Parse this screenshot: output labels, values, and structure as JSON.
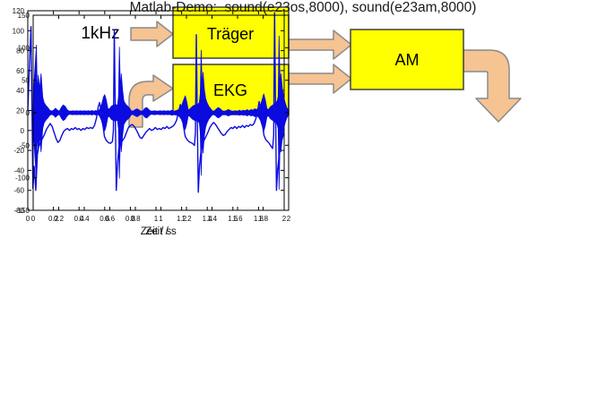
{
  "diagram": {
    "input_label": "1kHz",
    "blocks": [
      {
        "label": "Träger"
      },
      {
        "label": "EKG"
      },
      {
        "label": "AM"
      }
    ],
    "arrows": [
      "input-1khz-to-traeger",
      "traeger-to-am",
      "ekg-to-am",
      "curved-into-ekg",
      "am-output-down"
    ],
    "colors": {
      "block_fill": "#FFFF00",
      "block_border": "#404040",
      "arrow_fill": "#F6C392",
      "arrow_border": "#8A8A8A"
    }
  },
  "caption": "Matlab-Demo:  sound(e23os,8000), sound(e23am,8000)",
  "chart_data": [
    {
      "type": "line",
      "name": "ekg-signal",
      "xlabel": "Zeit / s",
      "ylabel": "",
      "xlim": [
        0,
        2
      ],
      "ylim": [
        -80,
        120
      ],
      "grid": false,
      "color": "#0B0BE0",
      "xticks": [
        {
          "v": 0,
          "l": "0"
        },
        {
          "v": 0.2,
          "l": "0.2"
        },
        {
          "v": 0.4,
          "l": "0.4"
        },
        {
          "v": 0.6,
          "l": "0.6"
        },
        {
          "v": 0.8,
          "l": "0.8"
        },
        {
          "v": 1,
          "l": "1"
        },
        {
          "v": 1.2,
          "l": "1.2"
        },
        {
          "v": 1.4,
          "l": "1.4"
        },
        {
          "v": 1.6,
          "l": "1.6"
        },
        {
          "v": 1.8,
          "l": "1.8"
        },
        {
          "v": 2,
          "l": "2"
        }
      ],
      "yticks": [
        {
          "v": -80,
          "l": "-80"
        },
        {
          "v": -60,
          "l": "-60"
        },
        {
          "v": -40,
          "l": "-40"
        },
        {
          "v": -20,
          "l": "-20"
        },
        {
          "v": 0,
          "l": "0"
        },
        {
          "v": 20,
          "l": "20"
        },
        {
          "v": 40,
          "l": "40"
        },
        {
          "v": 60,
          "l": "60"
        },
        {
          "v": 80,
          "l": "80"
        },
        {
          "v": 100,
          "l": "100"
        },
        {
          "v": 120,
          "l": "120"
        }
      ],
      "points": [
        [
          0,
          20
        ],
        [
          0.01,
          55
        ],
        [
          0.025,
          104
        ],
        [
          0.032,
          30
        ],
        [
          0.04,
          -58
        ],
        [
          0.05,
          -36
        ],
        [
          0.062,
          -60
        ],
        [
          0.075,
          -24
        ],
        [
          0.085,
          -16
        ],
        [
          0.1,
          -11
        ],
        [
          0.115,
          -8
        ],
        [
          0.13,
          -4
        ],
        [
          0.145,
          1
        ],
        [
          0.16,
          4
        ],
        [
          0.175,
          7
        ],
        [
          0.19,
          4
        ],
        [
          0.205,
          -2
        ],
        [
          0.22,
          -8
        ],
        [
          0.235,
          -12
        ],
        [
          0.25,
          -10
        ],
        [
          0.265,
          -5
        ],
        [
          0.28,
          -1
        ],
        [
          0.295,
          1
        ],
        [
          0.31,
          2
        ],
        [
          0.325,
          0
        ],
        [
          0.34,
          2
        ],
        [
          0.355,
          1
        ],
        [
          0.37,
          3
        ],
        [
          0.385,
          1
        ],
        [
          0.4,
          2
        ],
        [
          0.415,
          0
        ],
        [
          0.43,
          2
        ],
        [
          0.445,
          1
        ],
        [
          0.46,
          3
        ],
        [
          0.475,
          2
        ],
        [
          0.49,
          3
        ],
        [
          0.505,
          2
        ],
        [
          0.52,
          5
        ],
        [
          0.535,
          12
        ],
        [
          0.55,
          24
        ],
        [
          0.56,
          28
        ],
        [
          0.572,
          20
        ],
        [
          0.585,
          6
        ],
        [
          0.598,
          -6
        ],
        [
          0.612,
          -10
        ],
        [
          0.628,
          -12
        ],
        [
          0.645,
          -13
        ],
        [
          0.66,
          -11
        ],
        [
          0.668,
          0
        ],
        [
          0.675,
          101
        ],
        [
          0.683,
          10
        ],
        [
          0.69,
          -60
        ],
        [
          0.7,
          -34
        ],
        [
          0.71,
          -18
        ],
        [
          0.725,
          -13
        ],
        [
          0.74,
          -10
        ],
        [
          0.755,
          -7
        ],
        [
          0.77,
          -2
        ],
        [
          0.785,
          3
        ],
        [
          0.8,
          5
        ],
        [
          0.815,
          6
        ],
        [
          0.83,
          4
        ],
        [
          0.845,
          1
        ],
        [
          0.86,
          -3
        ],
        [
          0.875,
          -7
        ],
        [
          0.89,
          -8
        ],
        [
          0.905,
          -5
        ],
        [
          0.92,
          -2
        ],
        [
          0.935,
          0
        ],
        [
          0.95,
          2
        ],
        [
          0.965,
          0
        ],
        [
          0.98,
          1
        ],
        [
          0.995,
          3
        ],
        [
          1.01,
          1
        ],
        [
          1.025,
          2
        ],
        [
          1.04,
          1
        ],
        [
          1.055,
          3
        ],
        [
          1.07,
          2
        ],
        [
          1.085,
          4
        ],
        [
          1.1,
          2
        ],
        [
          1.115,
          3
        ],
        [
          1.13,
          4
        ],
        [
          1.145,
          6
        ],
        [
          1.16,
          10
        ],
        [
          1.175,
          18
        ],
        [
          1.19,
          26
        ],
        [
          1.202,
          17
        ],
        [
          1.215,
          4
        ],
        [
          1.228,
          -6
        ],
        [
          1.242,
          -9
        ],
        [
          1.256,
          -11
        ],
        [
          1.27,
          -12
        ],
        [
          1.285,
          -13
        ],
        [
          1.3,
          -15
        ],
        [
          1.308,
          -2
        ],
        [
          1.315,
          96
        ],
        [
          1.323,
          5
        ],
        [
          1.33,
          -62
        ],
        [
          1.34,
          -35
        ],
        [
          1.35,
          -22
        ],
        [
          1.362,
          -15
        ],
        [
          1.375,
          -10
        ],
        [
          1.39,
          -6
        ],
        [
          1.405,
          -2
        ],
        [
          1.42,
          3
        ],
        [
          1.435,
          6
        ],
        [
          1.45,
          8
        ],
        [
          1.465,
          6
        ],
        [
          1.48,
          3
        ],
        [
          1.495,
          0
        ],
        [
          1.51,
          -3
        ],
        [
          1.525,
          -5
        ],
        [
          1.54,
          -4
        ],
        [
          1.555,
          -1
        ],
        [
          1.57,
          1
        ],
        [
          1.585,
          3
        ],
        [
          1.6,
          2
        ],
        [
          1.615,
          4
        ],
        [
          1.63,
          2
        ],
        [
          1.645,
          4
        ],
        [
          1.66,
          3
        ],
        [
          1.675,
          5
        ],
        [
          1.69,
          3
        ],
        [
          1.705,
          5
        ],
        [
          1.72,
          4
        ],
        [
          1.735,
          6
        ],
        [
          1.75,
          5
        ],
        [
          1.765,
          7
        ],
        [
          1.78,
          12
        ],
        [
          1.795,
          22
        ],
        [
          1.805,
          29
        ],
        [
          1.817,
          20
        ],
        [
          1.83,
          6
        ],
        [
          1.843,
          -5
        ],
        [
          1.856,
          -9
        ],
        [
          1.87,
          -11
        ],
        [
          1.884,
          -13
        ],
        [
          1.898,
          -16
        ],
        [
          1.91,
          -18
        ],
        [
          1.918,
          -5
        ],
        [
          1.925,
          118
        ],
        [
          1.933,
          20
        ],
        [
          1.94,
          -60
        ],
        [
          1.95,
          -38
        ],
        [
          1.96,
          -26
        ],
        [
          1.972,
          -16
        ],
        [
          1.985,
          -8
        ],
        [
          2,
          -2
        ]
      ]
    },
    {
      "type": "area",
      "name": "am-modulated-signal",
      "xlabel": "Zeit / s",
      "ylabel": "",
      "xlim": [
        0,
        2
      ],
      "ylim": [
        -150,
        150
      ],
      "grid": false,
      "color": "#0B0BE0",
      "xticks": [
        {
          "v": 0,
          "l": "0"
        },
        {
          "v": 0.2,
          "l": "0.2"
        },
        {
          "v": 0.4,
          "l": "0.4"
        },
        {
          "v": 0.6,
          "l": "0.6"
        },
        {
          "v": 0.8,
          "l": "0.8"
        },
        {
          "v": 1,
          "l": "1"
        },
        {
          "v": 1.2,
          "l": "1.2"
        },
        {
          "v": 1.4,
          "l": "1.4"
        },
        {
          "v": 1.6,
          "l": "1.6"
        },
        {
          "v": 1.8,
          "l": "1.8"
        },
        {
          "v": 2,
          "l": "2"
        }
      ],
      "yticks": [
        {
          "v": -150,
          "l": "-150"
        },
        {
          "v": -100,
          "l": "-100"
        },
        {
          "v": -50,
          "l": "-50"
        },
        {
          "v": 0,
          "l": "0"
        },
        {
          "v": 50,
          "l": "50"
        },
        {
          "v": 100,
          "l": "100"
        },
        {
          "v": 150,
          "l": "150"
        }
      ],
      "envelope": [
        [
          0,
          20
        ],
        [
          0.01,
          55
        ],
        [
          0.025,
          104
        ],
        [
          0.032,
          30
        ],
        [
          0.04,
          58
        ],
        [
          0.05,
          36
        ],
        [
          0.062,
          60
        ],
        [
          0.075,
          24
        ],
        [
          0.085,
          16
        ],
        [
          0.1,
          11
        ],
        [
          0.115,
          8
        ],
        [
          0.13,
          4
        ],
        [
          0.145,
          2.5
        ],
        [
          0.16,
          4
        ],
        [
          0.175,
          7
        ],
        [
          0.19,
          4
        ],
        [
          0.205,
          2.5
        ],
        [
          0.22,
          8
        ],
        [
          0.235,
          12
        ],
        [
          0.25,
          10
        ],
        [
          0.265,
          5
        ],
        [
          0.28,
          2.5
        ],
        [
          0.295,
          2.5
        ],
        [
          0.31,
          3
        ],
        [
          0.325,
          2.5
        ],
        [
          0.34,
          3
        ],
        [
          0.355,
          2.5
        ],
        [
          0.37,
          3
        ],
        [
          0.385,
          2.5
        ],
        [
          0.4,
          3
        ],
        [
          0.415,
          2.5
        ],
        [
          0.43,
          3
        ],
        [
          0.445,
          2.5
        ],
        [
          0.46,
          3.5
        ],
        [
          0.475,
          2.5
        ],
        [
          0.49,
          3.5
        ],
        [
          0.505,
          2.5
        ],
        [
          0.52,
          5
        ],
        [
          0.535,
          12
        ],
        [
          0.55,
          24
        ],
        [
          0.56,
          28
        ],
        [
          0.572,
          20
        ],
        [
          0.585,
          6
        ],
        [
          0.598,
          6
        ],
        [
          0.612,
          10
        ],
        [
          0.628,
          12
        ],
        [
          0.645,
          13
        ],
        [
          0.66,
          11
        ],
        [
          0.668,
          25
        ],
        [
          0.675,
          101
        ],
        [
          0.683,
          35
        ],
        [
          0.69,
          60
        ],
        [
          0.7,
          34
        ],
        [
          0.71,
          18
        ],
        [
          0.725,
          13
        ],
        [
          0.74,
          10
        ],
        [
          0.755,
          7
        ],
        [
          0.77,
          2.5
        ],
        [
          0.785,
          3
        ],
        [
          0.8,
          5
        ],
        [
          0.815,
          6
        ],
        [
          0.83,
          4
        ],
        [
          0.845,
          2.5
        ],
        [
          0.86,
          3
        ],
        [
          0.875,
          7
        ],
        [
          0.89,
          8
        ],
        [
          0.905,
          5
        ],
        [
          0.92,
          2.5
        ],
        [
          0.935,
          2.5
        ],
        [
          0.95,
          3
        ],
        [
          0.965,
          2.5
        ],
        [
          0.98,
          2.5
        ],
        [
          0.995,
          3
        ],
        [
          1.01,
          2.5
        ],
        [
          1.025,
          3
        ],
        [
          1.04,
          2.5
        ],
        [
          1.055,
          3
        ],
        [
          1.07,
          2.5
        ],
        [
          1.085,
          4
        ],
        [
          1.1,
          2.5
        ],
        [
          1.115,
          3
        ],
        [
          1.13,
          4
        ],
        [
          1.145,
          6
        ],
        [
          1.16,
          10
        ],
        [
          1.175,
          18
        ],
        [
          1.19,
          26
        ],
        [
          1.202,
          17
        ],
        [
          1.215,
          4
        ],
        [
          1.228,
          6
        ],
        [
          1.242,
          9
        ],
        [
          1.256,
          11
        ],
        [
          1.27,
          12
        ],
        [
          1.285,
          13
        ],
        [
          1.3,
          15
        ],
        [
          1.308,
          30
        ],
        [
          1.315,
          96
        ],
        [
          1.323,
          40
        ],
        [
          1.33,
          62
        ],
        [
          1.34,
          35
        ],
        [
          1.35,
          22
        ],
        [
          1.362,
          15
        ],
        [
          1.375,
          10
        ],
        [
          1.39,
          6
        ],
        [
          1.405,
          2.5
        ],
        [
          1.42,
          3
        ],
        [
          1.435,
          6
        ],
        [
          1.45,
          8
        ],
        [
          1.465,
          6
        ],
        [
          1.48,
          3
        ],
        [
          1.495,
          2.5
        ],
        [
          1.51,
          3
        ],
        [
          1.525,
          5
        ],
        [
          1.54,
          4
        ],
        [
          1.555,
          2.5
        ],
        [
          1.57,
          2.5
        ],
        [
          1.585,
          3
        ],
        [
          1.6,
          2.5
        ],
        [
          1.615,
          4
        ],
        [
          1.63,
          2.5
        ],
        [
          1.645,
          4
        ],
        [
          1.66,
          3
        ],
        [
          1.675,
          5
        ],
        [
          1.69,
          3
        ],
        [
          1.705,
          5
        ],
        [
          1.72,
          4
        ],
        [
          1.735,
          6
        ],
        [
          1.75,
          5
        ],
        [
          1.765,
          7
        ],
        [
          1.78,
          12
        ],
        [
          1.795,
          22
        ],
        [
          1.805,
          29
        ],
        [
          1.817,
          20
        ],
        [
          1.83,
          6
        ],
        [
          1.843,
          5
        ],
        [
          1.856,
          9
        ],
        [
          1.87,
          11
        ],
        [
          1.884,
          13
        ],
        [
          1.898,
          16
        ],
        [
          1.91,
          18
        ],
        [
          1.918,
          25
        ],
        [
          1.925,
          118
        ],
        [
          1.933,
          40
        ],
        [
          1.94,
          60
        ],
        [
          1.95,
          38
        ],
        [
          1.96,
          26
        ],
        [
          1.972,
          16
        ],
        [
          1.985,
          8
        ],
        [
          2,
          3
        ]
      ]
    }
  ]
}
